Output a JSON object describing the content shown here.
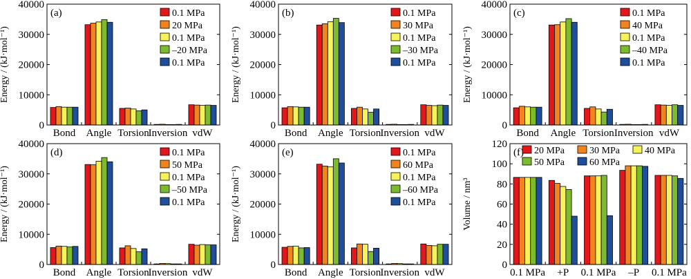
{
  "colors": {
    "red": "#e3171b",
    "orange": "#f2841f",
    "yellow": "#f5f25a",
    "green": "#7dbb2e",
    "blue": "#1f4f9c"
  },
  "chart_data": [
    {
      "type": "bar",
      "panel_label": "(a)",
      "ylabel": "Energy / (kJ·mol⁻¹)",
      "ylim": [
        0,
        40000
      ],
      "yticks": [
        "0",
        "10000",
        "20000",
        "30000",
        "40000"
      ],
      "categories": [
        "Bond",
        "Angle",
        "Torsion",
        "Inversion",
        "vdW"
      ],
      "legend_position": "top-right",
      "series": [
        {
          "name": "0.1 MPa",
          "color": "red",
          "values": [
            5800,
            33200,
            5500,
            200,
            6700
          ]
        },
        {
          "name": "20 MPa",
          "color": "orange",
          "values": [
            6100,
            33700,
            5600,
            250,
            6600
          ]
        },
        {
          "name": "0.1 MPa",
          "color": "yellow",
          "values": [
            5900,
            34100,
            5300,
            150,
            6500
          ]
        },
        {
          "name": "–20 MPa",
          "color": "green",
          "values": [
            5900,
            34900,
            4700,
            150,
            6600
          ]
        },
        {
          "name": "0.1 MPa",
          "color": "blue",
          "values": [
            5900,
            34000,
            5000,
            200,
            6500
          ]
        }
      ]
    },
    {
      "type": "bar",
      "panel_label": "(b)",
      "ylabel": "Energy / (kJ·mol⁻¹)",
      "ylim": [
        0,
        40000
      ],
      "yticks": [
        "0",
        "10000",
        "20000",
        "30000",
        "40000"
      ],
      "categories": [
        "Bond",
        "Angle",
        "Torsion",
        "Inversion",
        "vdW"
      ],
      "legend_position": "top-right",
      "series": [
        {
          "name": "0.1 MPa",
          "color": "red",
          "values": [
            5700,
            33100,
            5500,
            200,
            6700
          ]
        },
        {
          "name": "30 MPa",
          "color": "orange",
          "values": [
            6100,
            33500,
            5900,
            250,
            6500
          ]
        },
        {
          "name": "0.1 MPa",
          "color": "yellow",
          "values": [
            6000,
            34200,
            5300,
            150,
            6400
          ]
        },
        {
          "name": "–30 MPa",
          "color": "green",
          "values": [
            5900,
            35300,
            4200,
            150,
            6600
          ]
        },
        {
          "name": "0.1 MPa",
          "color": "blue",
          "values": [
            5900,
            33900,
            5300,
            200,
            6500
          ]
        }
      ]
    },
    {
      "type": "bar",
      "panel_label": "(c)",
      "ylabel": "Energy / (kJ·mol⁻¹)",
      "ylim": [
        0,
        40000
      ],
      "yticks": [
        "0",
        "10000",
        "20000",
        "30000",
        "40000"
      ],
      "categories": [
        "Bond",
        "Angle",
        "Torsion",
        "Inversion",
        "vdW"
      ],
      "legend_position": "top-right",
      "series": [
        {
          "name": "0.1 MPa",
          "color": "red",
          "values": [
            5700,
            33100,
            5500,
            200,
            6700
          ]
        },
        {
          "name": "40 MPa",
          "color": "orange",
          "values": [
            6200,
            33200,
            6000,
            250,
            6600
          ]
        },
        {
          "name": "0.1 MPa",
          "color": "yellow",
          "values": [
            6000,
            34100,
            5300,
            150,
            6500
          ]
        },
        {
          "name": "–40 MPa",
          "color": "green",
          "values": [
            5900,
            35200,
            4300,
            150,
            6700
          ]
        },
        {
          "name": "0.1 MPa",
          "color": "blue",
          "values": [
            5900,
            34000,
            5200,
            200,
            6500
          ]
        }
      ]
    },
    {
      "type": "bar",
      "panel_label": "(d)",
      "ylabel": "Energy / (kJ·mol⁻¹)",
      "ylim": [
        0,
        40000
      ],
      "yticks": [
        "0",
        "10000",
        "20000",
        "30000",
        "40000"
      ],
      "categories": [
        "Bond",
        "Angle",
        "Torsion",
        "Inversion",
        "vdW"
      ],
      "legend_position": "top-right",
      "series": [
        {
          "name": "0.1 MPa",
          "color": "red",
          "values": [
            5600,
            33100,
            5500,
            200,
            6700
          ]
        },
        {
          "name": "50 MPa",
          "color": "orange",
          "values": [
            6100,
            33000,
            6200,
            350,
            6400
          ]
        },
        {
          "name": "0.1 MPa",
          "color": "yellow",
          "values": [
            6000,
            34200,
            5300,
            300,
            6600
          ]
        },
        {
          "name": "–50 MPa",
          "color": "green",
          "values": [
            5800,
            35400,
            4200,
            200,
            6500
          ]
        },
        {
          "name": "0.1 MPa",
          "color": "blue",
          "values": [
            6000,
            34000,
            5200,
            200,
            6500
          ]
        }
      ]
    },
    {
      "type": "bar",
      "panel_label": "(e)",
      "ylabel": "Energy / (kJ·mol⁻¹)",
      "ylim": [
        0,
        40000
      ],
      "yticks": [
        "0",
        "10000",
        "20000",
        "30000",
        "40000"
      ],
      "categories": [
        "Bond",
        "Angle",
        "Torsion",
        "Inversion",
        "vdW"
      ],
      "legend_position": "top-right",
      "series": [
        {
          "name": "0.1 MPa",
          "color": "red",
          "values": [
            5700,
            33200,
            5500,
            200,
            6800
          ]
        },
        {
          "name": "60 MPa",
          "color": "orange",
          "values": [
            6000,
            32600,
            6800,
            350,
            6300
          ]
        },
        {
          "name": "0.1 MPa",
          "color": "yellow",
          "values": [
            6100,
            32300,
            6700,
            300,
            6200
          ]
        },
        {
          "name": "–60 MPa",
          "color": "green",
          "values": [
            5500,
            35000,
            4300,
            200,
            6700
          ]
        },
        {
          "name": "0.1 MPa",
          "color": "blue",
          "values": [
            5600,
            33600,
            5400,
            200,
            6700
          ]
        }
      ]
    },
    {
      "type": "bar",
      "panel_label": "(f)",
      "ylabel": "Volume / nm³",
      "ylim": [
        0,
        120
      ],
      "yticks": [
        "0",
        "20",
        "40",
        "60",
        "80",
        "100",
        "120"
      ],
      "categories": [
        "0.1 MPa",
        "+P",
        "0.1 MPa",
        "–P",
        "0.1 MPa"
      ],
      "legend_position": "top",
      "series": [
        {
          "name": "20 MPa",
          "color": "red",
          "values": [
            86.5,
            83.5,
            88.0,
            93.5,
            88.5
          ]
        },
        {
          "name": "30 MPa",
          "color": "orange",
          "values": [
            86.5,
            80.5,
            88.0,
            98.0,
            88.5
          ]
        },
        {
          "name": "40 MPa",
          "color": "yellow",
          "values": [
            86.5,
            77.5,
            88.0,
            98.0,
            88.5
          ]
        },
        {
          "name": "50 MPa",
          "color": "green",
          "values": [
            86.5,
            74.5,
            88.5,
            98.0,
            88.0
          ]
        },
        {
          "name": "60 MPa",
          "color": "blue",
          "values": [
            86.5,
            48.0,
            48.5,
            97.5,
            85.5
          ]
        }
      ]
    }
  ]
}
